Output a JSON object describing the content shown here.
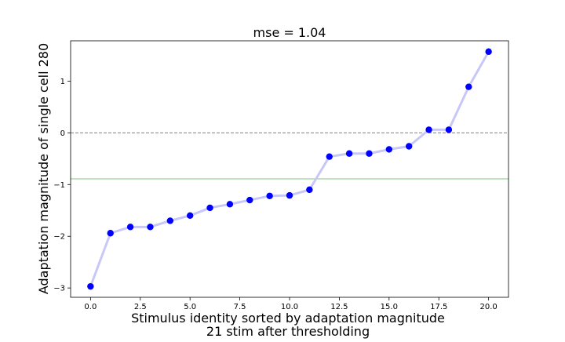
{
  "chart_data": {
    "type": "line",
    "title": "mse = 1.04",
    "xlabel_line1": "Stimulus identity sorted by adaptation magnitude",
    "xlabel_line2": "21 stim after thresholding",
    "ylabel": "Adaptation magnitude of single cell 280",
    "xlim": [
      -1.0,
      21.0
    ],
    "ylim": [
      -3.18,
      1.78
    ],
    "xticks": [
      0.0,
      2.5,
      5.0,
      7.5,
      10.0,
      12.5,
      15.0,
      17.5,
      20.0
    ],
    "xtick_labels": [
      "0.0",
      "2.5",
      "5.0",
      "7.5",
      "10.0",
      "12.5",
      "15.0",
      "17.5",
      "20.0"
    ],
    "yticks": [
      -3,
      -2,
      -1,
      0,
      1
    ],
    "ytick_labels": [
      "−3",
      "−2",
      "−1",
      "0",
      "1"
    ],
    "grid": false,
    "x": [
      0,
      1,
      2,
      3,
      4,
      5,
      6,
      7,
      8,
      9,
      10,
      11,
      12,
      13,
      14,
      15,
      16,
      17,
      18,
      19,
      20
    ],
    "series": [
      {
        "values": [
          -2.97,
          -1.94,
          -1.82,
          -1.82,
          -1.7,
          -1.6,
          -1.45,
          -1.38,
          -1.3,
          -1.22,
          -1.21,
          -1.1,
          -0.46,
          -0.4,
          -0.4,
          -0.32,
          -0.26,
          0.06,
          0.06,
          0.89,
          1.57
        ],
        "line_color": "#c8c8f8",
        "marker_color": "#0000ff"
      }
    ],
    "reference_lines": [
      {
        "y": 0.0,
        "color": "#808080",
        "style": "dashed"
      },
      {
        "y": -0.89,
        "color": "#7fc47f",
        "style": "solid"
      }
    ]
  }
}
